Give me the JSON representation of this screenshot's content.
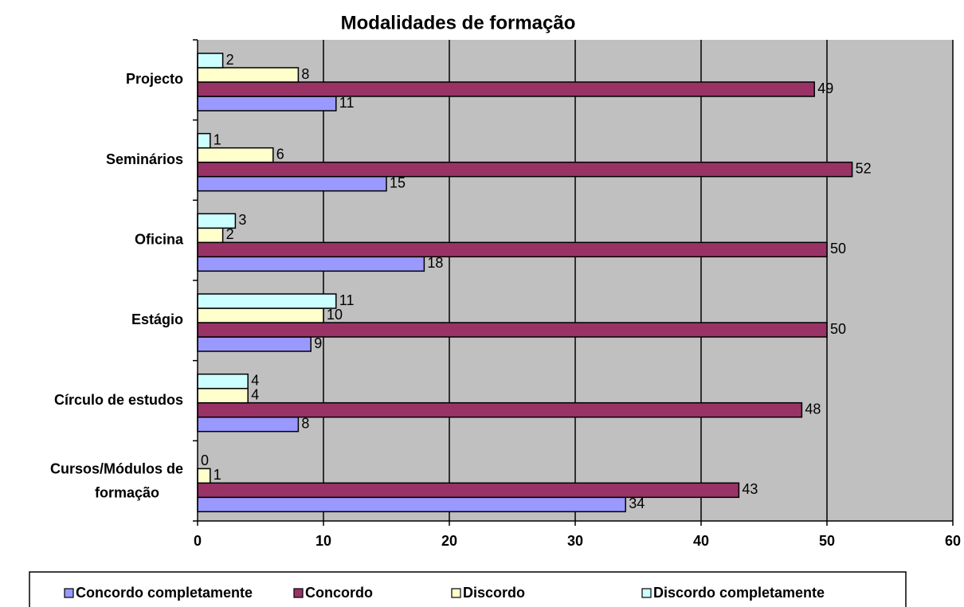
{
  "chart_data": {
    "type": "bar",
    "orientation": "horizontal",
    "title": "Modalidades de formação",
    "categories": [
      "Cursos/Módulos de formação",
      "Círculo de estudos",
      "Estágio",
      "Oficina",
      "Seminários",
      "Projecto"
    ],
    "series": [
      {
        "name": "Concordo completamente",
        "color": "#9999ff",
        "values": [
          34,
          8,
          9,
          18,
          15,
          11
        ]
      },
      {
        "name": "Concordo",
        "color": "#993366",
        "values": [
          43,
          48,
          50,
          50,
          52,
          49
        ]
      },
      {
        "name": "Discordo",
        "color": "#ffffcc",
        "values": [
          1,
          4,
          10,
          2,
          6,
          8
        ]
      },
      {
        "name": "Discordo completamente",
        "color": "#ccffff",
        "values": [
          0,
          4,
          11,
          3,
          1,
          2
        ]
      }
    ],
    "xlim": [
      0,
      60
    ],
    "xticks": [
      0,
      10,
      20,
      30,
      40,
      50,
      60
    ],
    "grid": true,
    "legend": "bottom",
    "plot_background": "#c0c0c0"
  }
}
